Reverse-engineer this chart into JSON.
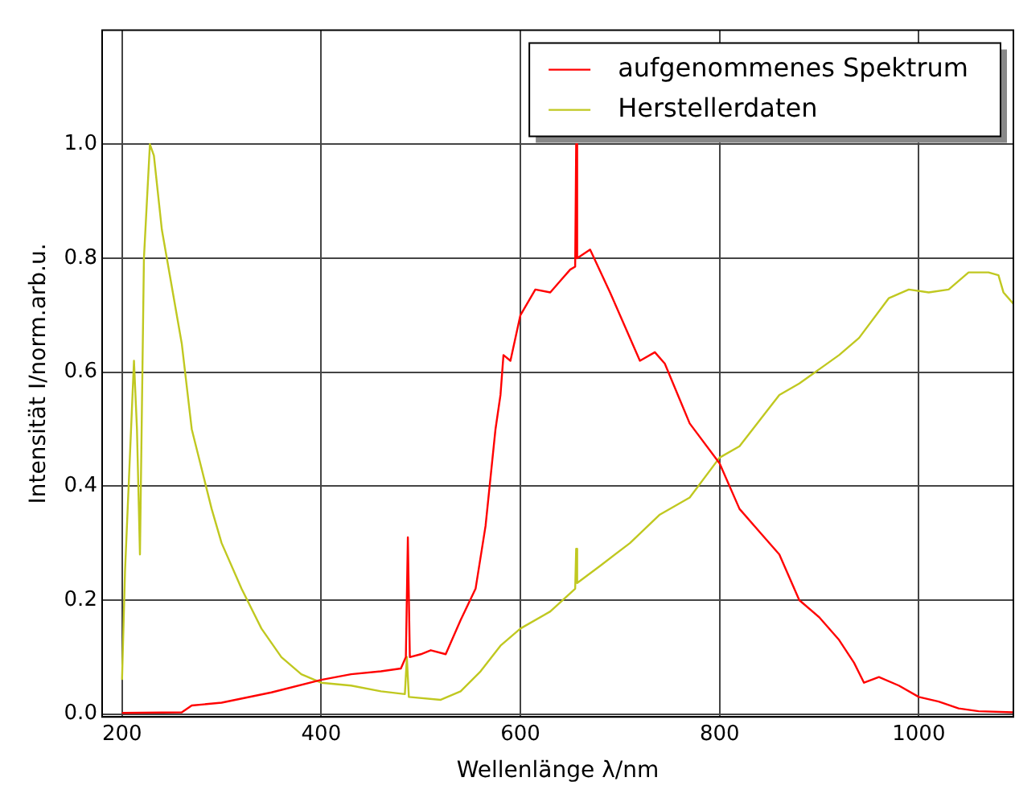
{
  "chart_data": {
    "type": "line",
    "xlabel": "Wellenlänge λ/nm",
    "ylabel": "Intensität I/norm.arb.u.",
    "xlim": [
      180,
      1095
    ],
    "ylim": [
      -0.005,
      1.2
    ],
    "xticks": [
      200,
      400,
      600,
      800,
      1000
    ],
    "yticks": [
      {
        "value": 0,
        "label": "0.0"
      },
      {
        "value": 0.2,
        "label": "0.2"
      },
      {
        "value": 0.4,
        "label": "0.4"
      },
      {
        "value": 0.6,
        "label": "0.6"
      },
      {
        "value": 0.8,
        "label": "0.8"
      },
      {
        "value": 1.0,
        "label": "1.0"
      }
    ],
    "grid": true,
    "legend": "top right",
    "marker": "none",
    "line_style": "solid",
    "series": [
      {
        "name": "aufgenommenes Spektrum",
        "color": "#ff0000",
        "x": [
          200,
          260,
          270,
          300,
          350,
          400,
          430,
          460,
          480,
          485,
          487,
          489,
          500,
          510,
          525,
          540,
          555,
          565,
          575,
          580,
          583,
          590,
          600,
          615,
          630,
          640,
          650,
          655,
          656,
          657,
          670,
          690,
          720,
          735,
          745,
          770,
          800,
          820,
          840,
          860,
          880,
          900,
          920,
          935,
          945,
          960,
          980,
          1000,
          1020,
          1040,
          1060,
          1095
        ],
        "values": [
          0.002,
          0.003,
          0.015,
          0.02,
          0.038,
          0.06,
          0.07,
          0.075,
          0.08,
          0.1,
          0.31,
          0.1,
          0.105,
          0.112,
          0.105,
          0.165,
          0.22,
          0.33,
          0.5,
          0.56,
          0.63,
          0.62,
          0.7,
          0.745,
          0.74,
          0.76,
          0.78,
          0.785,
          1.0,
          0.8,
          0.815,
          0.74,
          0.62,
          0.635,
          0.615,
          0.51,
          0.44,
          0.36,
          0.32,
          0.28,
          0.2,
          0.17,
          0.13,
          0.09,
          0.055,
          0.065,
          0.05,
          0.03,
          0.022,
          0.01,
          0.005,
          0.003
        ]
      },
      {
        "name": "Herstellerdaten",
        "color": "#c0c820",
        "x": [
          200,
          203,
          212,
          215,
          218,
          222,
          228,
          232,
          240,
          260,
          270,
          280,
          290,
          300,
          320,
          340,
          360,
          380,
          400,
          430,
          460,
          484,
          486,
          488,
          520,
          540,
          560,
          580,
          600,
          630,
          655,
          656,
          657,
          680,
          710,
          740,
          770,
          800,
          820,
          860,
          880,
          920,
          940,
          970,
          990,
          1010,
          1030,
          1050,
          1070,
          1080,
          1085,
          1095
        ],
        "values": [
          0.06,
          0.25,
          0.62,
          0.5,
          0.28,
          0.8,
          1.0,
          0.98,
          0.85,
          0.65,
          0.5,
          0.43,
          0.36,
          0.3,
          0.22,
          0.15,
          0.1,
          0.07,
          0.055,
          0.05,
          0.04,
          0.035,
          0.1,
          0.03,
          0.025,
          0.04,
          0.075,
          0.12,
          0.15,
          0.18,
          0.22,
          0.29,
          0.23,
          0.26,
          0.3,
          0.35,
          0.38,
          0.45,
          0.47,
          0.56,
          0.58,
          0.63,
          0.66,
          0.73,
          0.745,
          0.74,
          0.745,
          0.775,
          0.775,
          0.77,
          0.74,
          0.72
        ]
      }
    ]
  }
}
